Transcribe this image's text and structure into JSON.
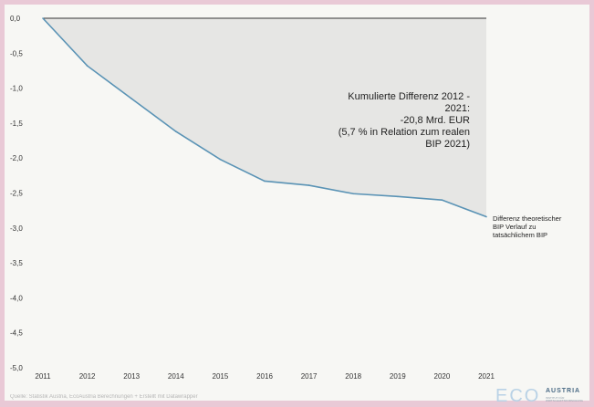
{
  "chart_data": {
    "type": "area",
    "title": "",
    "xlabel": "",
    "ylabel": "",
    "x": [
      2011,
      2012,
      2013,
      2014,
      2015,
      2016,
      2017,
      2018,
      2019,
      2020,
      2021
    ],
    "series": [
      {
        "name": "Differenz theoretischer BIP Verlauf zu tatsächlichem BIP",
        "values": [
          0.0,
          -0.68,
          -1.15,
          -1.62,
          -2.02,
          -2.33,
          -2.39,
          -2.51,
          -2.55,
          -2.6,
          -2.84
        ]
      }
    ],
    "ylim": [
      -5.0,
      0.0
    ],
    "xlim": [
      2011,
      2021
    ],
    "y_ticks": [
      "0,0",
      "-0,5",
      "-1,0",
      "-1,5",
      "-2,0",
      "-2,5",
      "-3,0",
      "-3,5",
      "-4,0",
      "-4,5",
      "-5,0"
    ],
    "x_ticks": [
      "2011",
      "2012",
      "2013",
      "2014",
      "2015",
      "2016",
      "2017",
      "2018",
      "2019",
      "2020",
      "2021"
    ],
    "grid": false,
    "line_color": "#5a93b5",
    "fill_color": "#e6e6e4",
    "annotation": "Kumulierte Differenz 2012 -\n2021:\n-20,8 Mrd. EUR\n(5,7 % in Relation zum realen\nBIP 2021)",
    "series_label": "Differenz theoretischer\nBIP Verlauf zu\ntatsächlichem BIP"
  },
  "source": "Quelle: Statistik Austria, EcoAustria Berechnungen + Erstellt mit Datawrapper",
  "logo": {
    "eco": "ECO",
    "austria": "AUSTRIA",
    "subtitle": "INSTITUT FÜR\nWIRTSCHAFTSFORSCHUNG"
  },
  "colors": {
    "frame": "#e9c9d6",
    "panel": "#f7f7f4"
  }
}
